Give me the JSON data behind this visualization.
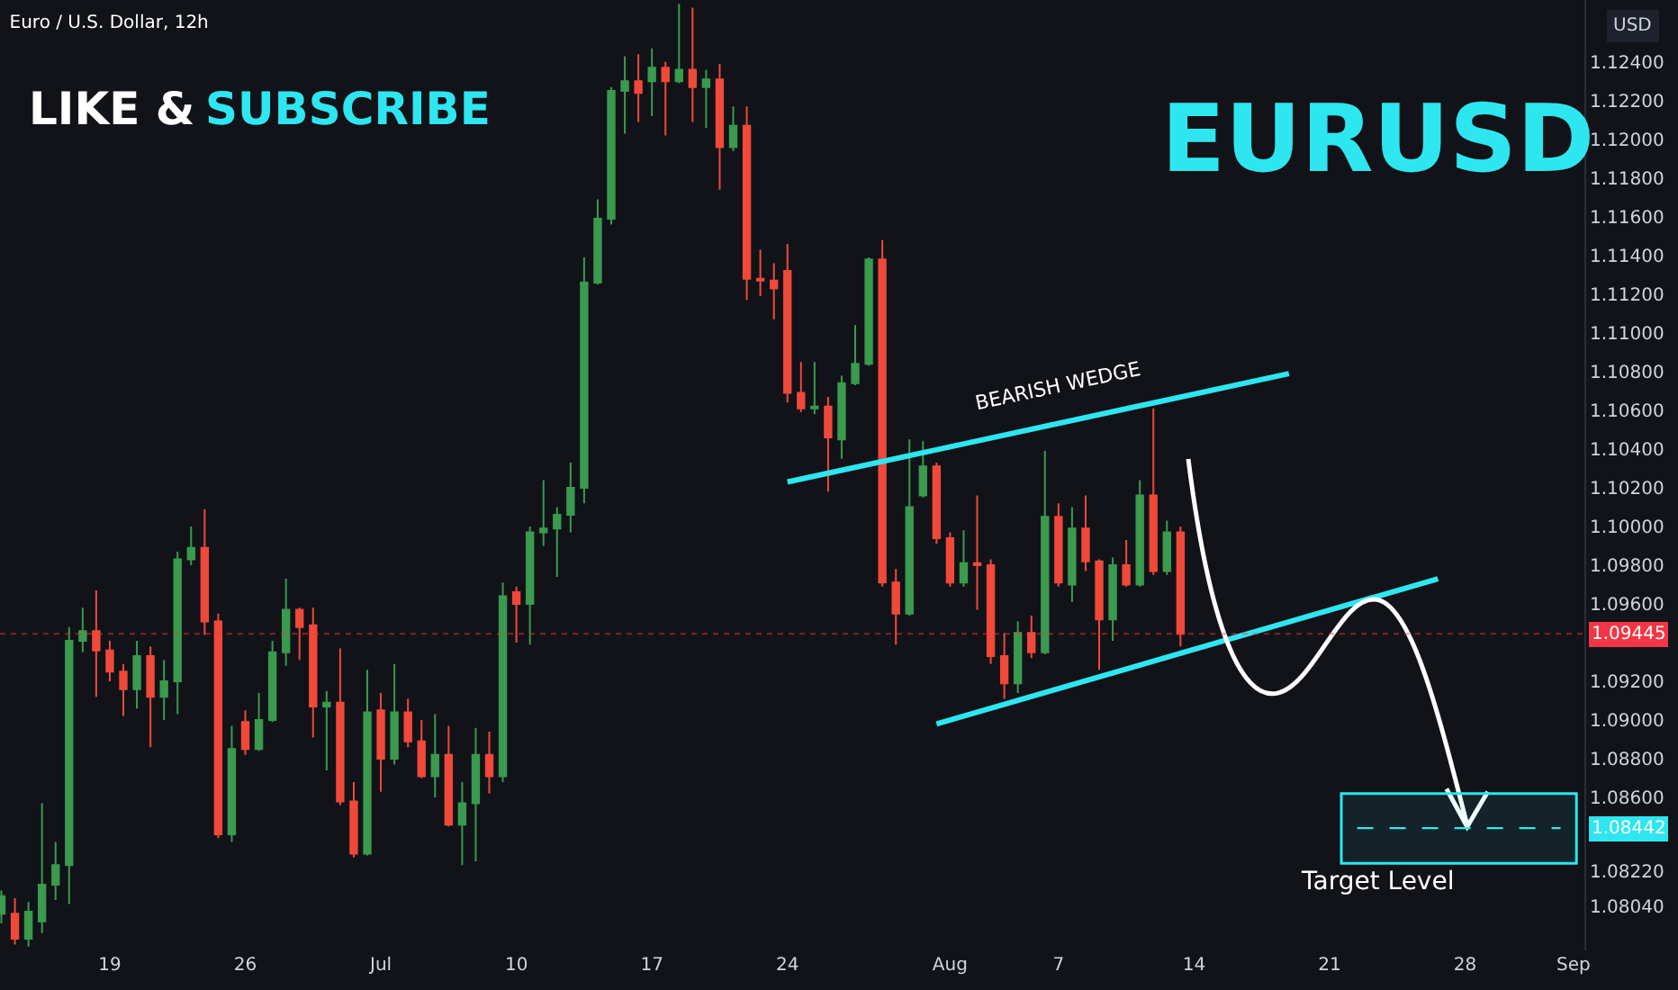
{
  "chart_data": {
    "type": "candlestick",
    "title": "Euro / U.S. Dollar, 12h",
    "ylabel": "USD",
    "categories": [
      null,
      null,
      null,
      null,
      null,
      null,
      null,
      null,
      "19",
      null,
      null,
      null,
      null,
      null,
      null,
      null,
      null,
      null,
      "26",
      null,
      null,
      null,
      null,
      null,
      null,
      null,
      null,
      null,
      "Jul",
      null,
      null,
      null,
      null,
      null,
      null,
      null,
      null,
      null,
      "10",
      null,
      null,
      null,
      null,
      null,
      null,
      null,
      null,
      null,
      "17",
      null,
      null,
      null,
      null,
      null,
      null,
      null,
      null,
      null,
      "24",
      null,
      null,
      null,
      null,
      null,
      null,
      null,
      null,
      null,
      null,
      null,
      "Aug",
      null,
      null,
      null,
      null,
      null,
      null,
      null,
      "7",
      null,
      null,
      null,
      null,
      null,
      null,
      null,
      null,
      null,
      "14",
      null,
      null,
      null,
      null,
      null,
      null,
      null,
      null,
      null,
      "21",
      null,
      null,
      null,
      null,
      null,
      null,
      null,
      null,
      null,
      "28",
      null,
      null,
      null,
      null,
      null,
      null,
      null,
      "Sep"
    ],
    "ohlc": [
      [
        1.08,
        1.0812,
        1.0795,
        1.0809
      ],
      [
        1.08,
        1.0808,
        1.0784,
        1.0787
      ],
      [
        1.0787,
        1.0806,
        1.0783,
        1.0801
      ],
      [
        1.0796,
        1.0857,
        1.079,
        1.0815
      ],
      [
        1.0815,
        1.0837,
        1.0807,
        1.0825
      ],
      [
        1.0825,
        1.0948,
        1.0805,
        1.0941
      ],
      [
        1.0941,
        1.0958,
        1.0935,
        1.0946
      ],
      [
        1.0946,
        1.0967,
        1.0912,
        1.0936
      ],
      [
        1.0936,
        1.0941,
        1.092,
        1.0925
      ],
      [
        1.0925,
        1.0929,
        1.0902,
        1.0916
      ],
      [
        1.0916,
        1.0941,
        1.0906,
        1.0933
      ],
      [
        1.0933,
        1.0938,
        1.0886,
        1.0912
      ],
      [
        1.0912,
        1.0931,
        1.09,
        1.092
      ],
      [
        1.092,
        1.0987,
        1.0903,
        1.0983
      ],
      [
        1.0983,
        1.1,
        1.098,
        1.0989
      ],
      [
        1.0989,
        1.1009,
        1.0944,
        1.0951
      ],
      [
        1.0951,
        1.0955,
        1.0839,
        1.0841
      ],
      [
        1.0841,
        1.0897,
        1.0837,
        1.0885
      ],
      [
        1.0899,
        1.0905,
        1.0882,
        1.0885
      ],
      [
        1.0885,
        1.0914,
        1.0884,
        1.09
      ],
      [
        1.09,
        1.0941,
        1.0899,
        1.0935
      ],
      [
        1.0935,
        1.0973,
        1.0928,
        1.0957
      ],
      [
        1.0957,
        1.0958,
        1.0931,
        1.0948
      ],
      [
        1.0949,
        1.0958,
        1.0891,
        1.0907
      ],
      [
        1.0907,
        1.0915,
        1.0874,
        1.0909
      ],
      [
        1.0909,
        1.0937,
        1.0856,
        1.0858
      ],
      [
        1.0858,
        1.0868,
        1.0829,
        1.0831
      ],
      [
        1.0831,
        1.0926,
        1.083,
        1.0904
      ],
      [
        1.0905,
        1.0914,
        1.0863,
        1.088
      ],
      [
        1.088,
        1.0929,
        1.0877,
        1.0904
      ],
      [
        1.0904,
        1.0911,
        1.0886,
        1.0889
      ],
      [
        1.0889,
        1.09,
        1.087,
        1.0871
      ],
      [
        1.0871,
        1.0903,
        1.086,
        1.0882
      ],
      [
        1.0882,
        1.0897,
        1.0845,
        1.0846
      ],
      [
        1.0846,
        1.0868,
        1.0825,
        1.0857
      ],
      [
        1.0857,
        1.0896,
        1.0827,
        1.0882
      ],
      [
        1.0882,
        1.0894,
        1.0862,
        1.0871
      ],
      [
        1.0871,
        1.0971,
        1.0868,
        1.0964
      ],
      [
        1.0966,
        1.0969,
        1.094,
        1.096
      ],
      [
        1.096,
        1.1,
        1.0939,
        1.0997
      ],
      [
        1.0997,
        1.1024,
        1.099,
        1.0999
      ],
      [
        1.0999,
        1.101,
        1.0974,
        1.1006
      ],
      [
        1.1006,
        1.1033,
        1.0997,
        1.102
      ],
      [
        1.102,
        1.1139,
        1.1012,
        1.1126
      ],
      [
        1.1126,
        1.1169,
        1.1125,
        1.1159
      ],
      [
        1.1159,
        1.1227,
        1.1156,
        1.1225
      ],
      [
        1.1225,
        1.1243,
        1.1203,
        1.123
      ],
      [
        1.123,
        1.1244,
        1.1209,
        1.1224
      ],
      [
        1.123,
        1.1247,
        1.1212,
        1.1237
      ],
      [
        1.1237,
        1.124,
        1.1202,
        1.123
      ],
      [
        1.123,
        1.127,
        1.1229,
        1.1236
      ],
      [
        1.1236,
        1.1268,
        1.1209,
        1.1227
      ],
      [
        1.1227,
        1.1236,
        1.1206,
        1.1231
      ],
      [
        1.1231,
        1.1239,
        1.1174,
        1.1196
      ],
      [
        1.1196,
        1.1217,
        1.1194,
        1.1207
      ],
      [
        1.1207,
        1.1217,
        1.1117,
        1.1128
      ],
      [
        1.1128,
        1.1143,
        1.1119,
        1.1127
      ],
      [
        1.1127,
        1.1136,
        1.1107,
        1.1123
      ],
      [
        1.1132,
        1.1146,
        1.1064,
        1.1069
      ],
      [
        1.1069,
        1.1085,
        1.1059,
        1.1061
      ],
      [
        1.1061,
        1.1085,
        1.1058,
        1.1062
      ],
      [
        1.1062,
        1.1067,
        1.1018,
        1.1046
      ],
      [
        1.1045,
        1.1078,
        1.1035,
        1.1074
      ],
      [
        1.1074,
        1.1104,
        1.1073,
        1.1084
      ],
      [
        1.1084,
        1.1139,
        1.1083,
        1.1138
      ],
      [
        1.1138,
        1.1148,
        1.0969,
        1.0971
      ],
      [
        1.0971,
        1.0978,
        1.0939,
        1.0955
      ],
      [
        1.0955,
        1.1045,
        1.0954,
        1.101
      ],
      [
        1.1016,
        1.1044,
        1.1015,
        1.1031
      ],
      [
        1.1031,
        1.1033,
        1.0991,
        1.0994
      ],
      [
        1.0994,
        1.0997,
        1.0969,
        1.0971
      ],
      [
        1.0971,
        1.0998,
        1.0969,
        1.0981
      ],
      [
        1.0981,
        1.1016,
        1.0957,
        1.098
      ],
      [
        1.098,
        1.0983,
        1.0929,
        1.0933
      ],
      [
        1.0933,
        1.0945,
        1.0911,
        1.0919
      ],
      [
        1.0919,
        1.0951,
        1.0914,
        1.0945
      ],
      [
        1.0945,
        1.0954,
        1.0932,
        1.0935
      ],
      [
        1.0935,
        1.1039,
        1.0934,
        1.1005
      ],
      [
        1.1005,
        1.1012,
        1.0969,
        1.0971
      ],
      [
        1.097,
        1.101,
        1.0961,
        1.0999
      ],
      [
        1.0999,
        1.1016,
        1.0977,
        1.0982
      ],
      [
        1.0982,
        1.0983,
        1.0926,
        1.0952
      ],
      [
        1.0952,
        1.0984,
        1.0941,
        1.098
      ],
      [
        1.098,
        1.0993,
        1.0969,
        1.097
      ],
      [
        1.097,
        1.1024,
        1.0969,
        1.1016
      ],
      [
        1.1016,
        1.1061,
        1.0975,
        1.0977
      ],
      [
        1.0977,
        1.1003,
        1.0975,
        1.0997
      ],
      [
        1.0997,
        1.1,
        1.0938,
        1.09445
      ],
      null,
      null,
      null,
      null,
      null,
      null,
      null,
      null,
      null,
      null,
      null,
      null,
      null,
      null,
      null,
      null,
      null,
      null,
      null,
      null,
      null,
      null,
      null,
      null,
      null,
      null,
      null,
      null,
      null
    ],
    "colors": [
      "#3a9a4e",
      "#f0493a",
      "#3a9a4e",
      "#3a9a4e",
      "#3a9a4e",
      "#3a9a4e",
      "#3a9a4e",
      "#f0493a",
      "#f0493a",
      "#f0493a",
      "#3a9a4e",
      "#f0493a",
      "#3a9a4e",
      "#3a9a4e",
      "#3a9a4e",
      "#f0493a",
      "#f0493a",
      "#3a9a4e",
      "#f0493a",
      "#3a9a4e",
      "#3a9a4e",
      "#3a9a4e",
      "#f0493a",
      "#f0493a",
      "#3a9a4e",
      "#f0493a",
      "#f0493a",
      "#3a9a4e",
      "#f0493a",
      "#3a9a4e",
      "#f0493a",
      "#f0493a",
      "#3a9a4e",
      "#f0493a",
      "#3a9a4e",
      "#3a9a4e",
      "#f0493a",
      "#3a9a4e",
      "#f0493a",
      "#3a9a4e",
      "#3a9a4e",
      "#3a9a4e",
      "#3a9a4e",
      "#3a9a4e",
      "#3a9a4e",
      "#3a9a4e",
      "#3a9a4e",
      "#f0493a",
      "#3a9a4e",
      "#f0493a",
      "#3a9a4e",
      "#f0493a",
      "#3a9a4e",
      "#f0493a",
      "#3a9a4e",
      "#f0493a",
      "#f0493a",
      "#f0493a",
      "#f0493a",
      "#f0493a",
      "#3a9a4e",
      "#f0493a",
      "#3a9a4e",
      "#3a9a4e",
      "#3a9a4e",
      "#f0493a",
      "#f0493a",
      "#3a9a4e",
      "#3a9a4e",
      "#f0493a",
      "#f0493a",
      "#3a9a4e",
      "#f0493a",
      "#f0493a",
      "#f0493a",
      "#3a9a4e",
      "#f0493a",
      "#3a9a4e",
      "#f0493a",
      "#3a9a4e",
      "#f0493a",
      "#f0493a",
      "#3a9a4e",
      "#f0493a",
      "#3a9a4e",
      "#f0493a",
      "#3a9a4e",
      "#f0493a",
      null,
      null,
      null,
      null,
      null,
      null,
      null,
      null,
      null,
      null,
      null,
      null,
      null,
      null,
      null,
      null,
      null,
      null,
      null,
      null,
      null,
      null,
      null,
      null,
      null,
      null,
      null,
      null,
      null
    ],
    "series": [
      {
        "type": "line",
        "color": "#2ee6f0",
        "values": [
          null,
          null,
          null,
          null,
          null,
          null,
          null,
          null,
          null,
          null,
          null,
          null,
          null,
          null,
          null,
          null,
          null,
          null,
          null,
          null,
          null,
          null,
          null,
          null,
          null,
          null,
          null,
          null,
          null,
          null,
          null,
          null,
          null,
          null,
          null,
          null,
          null,
          null,
          null,
          null,
          null,
          null,
          null,
          null,
          null,
          null,
          null,
          null,
          null,
          null,
          null,
          null,
          null,
          null,
          null,
          null,
          null,
          null,
          1.1023,
          null,
          null,
          null,
          null,
          null,
          null,
          null,
          null,
          null,
          null,
          null,
          null,
          null,
          null,
          null,
          null,
          null,
          null,
          null,
          null,
          null,
          null,
          null,
          null,
          null,
          null,
          null,
          null,
          null,
          null,
          null,
          null,
          null,
          null,
          null,
          null,
          1.1079,
          null,
          null,
          null,
          null,
          null,
          null,
          null,
          null,
          null,
          null,
          null,
          null,
          null,
          null,
          null,
          null,
          null,
          null,
          null,
          null,
          null
        ]
      },
      {
        "type": "line",
        "color": "#2ee6f0",
        "values": [
          null,
          null,
          null,
          null,
          null,
          null,
          null,
          null,
          null,
          null,
          null,
          null,
          null,
          null,
          null,
          null,
          null,
          null,
          null,
          null,
          null,
          null,
          null,
          null,
          null,
          null,
          null,
          null,
          null,
          null,
          null,
          null,
          null,
          null,
          null,
          null,
          null,
          null,
          null,
          null,
          null,
          null,
          null,
          null,
          null,
          null,
          null,
          null,
          null,
          null,
          null,
          null,
          null,
          null,
          null,
          null,
          null,
          null,
          null,
          null,
          null,
          null,
          null,
          null,
          null,
          null,
          null,
          null,
          null,
          1.0898,
          null,
          null,
          null,
          null,
          null,
          null,
          null,
          null,
          null,
          null,
          null,
          null,
          null,
          null,
          null,
          null,
          null,
          null,
          null,
          null,
          null,
          null,
          null,
          null,
          null,
          null,
          null,
          null,
          null,
          null,
          null,
          null,
          null,
          null,
          null,
          null,
          1.0973,
          null,
          null,
          null,
          null,
          null,
          null,
          null,
          null,
          null,
          null
        ]
      }
    ],
    "annotations": [
      "LIKE &",
      "SUBSCRIBE",
      "EURUSD",
      {
        "text": "BEARISH WEDGE",
        "x": "7",
        "y": 1.1055
      }
    ],
    "ref_lines": [
      {
        "axis": "y",
        "value": 1.09445,
        "label": "1.09445",
        "color": "#f23645"
      },
      {
        "axis": "y",
        "value": 1.08442,
        "label": "1.08442",
        "color": "#2ee6f0",
        "line_style": "dashed"
      }
    ],
    "bands": [
      {
        "axis": "y",
        "from": 1.0826,
        "to": 1.0862,
        "label": "Target Level",
        "color": "#2ee6f0"
      }
    ],
    "ylim": [
      1.0781,
      1.1272
    ],
    "yticks": [
      {
        "value": 1.124,
        "label": "1.12400"
      },
      {
        "value": 1.122,
        "label": "1.12200"
      },
      {
        "value": 1.12,
        "label": "1.12000"
      },
      {
        "value": 1.118,
        "label": "1.11800"
      },
      {
        "value": 1.116,
        "label": "1.11600"
      },
      {
        "value": 1.114,
        "label": "1.11400"
      },
      {
        "value": 1.112,
        "label": "1.11200"
      },
      {
        "value": 1.11,
        "label": "1.11000"
      },
      {
        "value": 1.108,
        "label": "1.10800"
      },
      {
        "value": 1.106,
        "label": "1.10600"
      },
      {
        "value": 1.104,
        "label": "1.10400"
      },
      {
        "value": 1.102,
        "label": "1.10200"
      },
      {
        "value": 1.1,
        "label": "1.10000"
      },
      {
        "value": 1.098,
        "label": "1.09800"
      },
      {
        "value": 1.096,
        "label": "1.09600"
      },
      {
        "value": 1.092,
        "label": "1.09200"
      },
      {
        "value": 1.09,
        "label": "1.09000"
      },
      {
        "value": 1.088,
        "label": "1.08800"
      },
      {
        "value": 1.086,
        "label": "1.08600"
      },
      {
        "value": 1.0822,
        "label": "1.08220"
      },
      {
        "value": 1.0804,
        "label": "1.08040"
      }
    ]
  }
}
